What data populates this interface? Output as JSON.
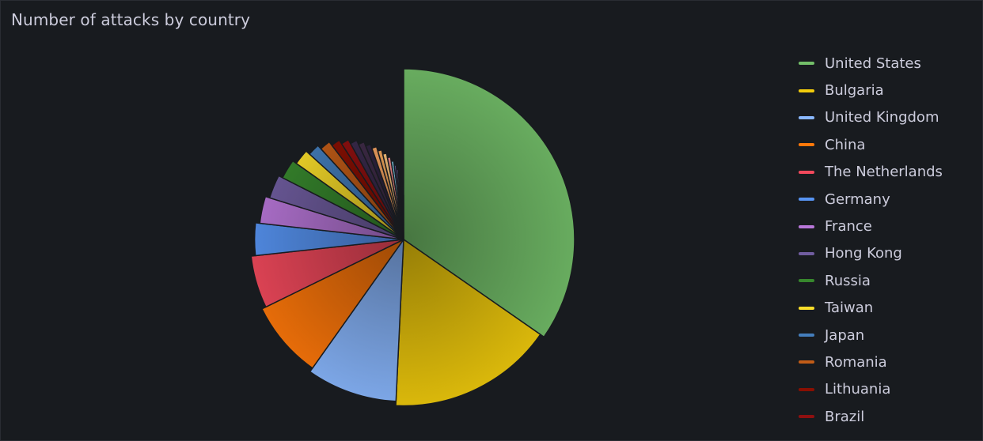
{
  "panel": {
    "title": "Number of attacks by country"
  },
  "chart_data": {
    "type": "pie",
    "title": "Number of attacks by country",
    "legend_position": "right",
    "slices": [
      {
        "label": "United States",
        "value": 34.5,
        "color": "#73bf69"
      },
      {
        "label": "Bulgaria",
        "value": 16.0,
        "color": "#f2cc0c"
      },
      {
        "label": "United Kingdom",
        "value": 9.0,
        "color": "#8ab8ff"
      },
      {
        "label": "China",
        "value": 7.9,
        "color": "#ff780a"
      },
      {
        "label": "The Netherlands",
        "value": 5.5,
        "color": "#f2495c"
      },
      {
        "label": "Germany",
        "value": 3.5,
        "color": "#5794f2"
      },
      {
        "label": "France",
        "value": 3.0,
        "color": "#b877d9"
      },
      {
        "label": "Hong Kong",
        "value": 2.7,
        "color": "#705da0"
      },
      {
        "label": "Russia",
        "value": 2.3,
        "color": "#37872d"
      },
      {
        "label": "Taiwan",
        "value": 1.9,
        "color": "#fade2a"
      },
      {
        "label": "Japan",
        "value": 1.5,
        "color": "#447ebc"
      },
      {
        "label": "Romania",
        "value": 1.4,
        "color": "#c15c17"
      },
      {
        "label": "Lithuania",
        "value": 1.2,
        "color": "#890f02"
      },
      {
        "label": "Brazil",
        "value": 1.1,
        "color": "#8f1010"
      },
      {
        "value": 1.0,
        "color": "#3a2a4d"
      },
      {
        "value": 0.9,
        "color": "#3f2b48"
      },
      {
        "value": 0.8,
        "color": "#2f2440"
      },
      {
        "value": 0.8,
        "color": "#f4a261"
      },
      {
        "value": 0.7,
        "color": "#f2a65a"
      },
      {
        "value": 0.7,
        "color": "#f9c27a"
      },
      {
        "value": 0.6,
        "color": "#f08a8a"
      },
      {
        "value": 0.5,
        "color": "#7ec8e3"
      },
      {
        "value": 0.4,
        "color": "#6d5ca8"
      },
      {
        "value": 0.35,
        "color": "#8a6fc0"
      },
      {
        "value": 0.3,
        "color": "#5b4b8a"
      },
      {
        "value": 0.25,
        "color": "#7e6bb8"
      },
      {
        "value": 0.2,
        "color": "#6a5a9e"
      },
      {
        "value": 0.2,
        "color": "#8c7cc6"
      },
      {
        "value": 0.15,
        "color": "#5e4f94"
      },
      {
        "value": 0.15,
        "color": "#7a69b0"
      }
    ]
  }
}
